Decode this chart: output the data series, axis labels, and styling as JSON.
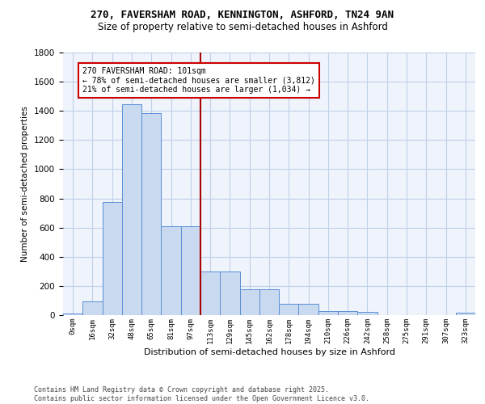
{
  "title_line1": "270, FAVERSHAM ROAD, KENNINGTON, ASHFORD, TN24 9AN",
  "title_line2": "Size of property relative to semi-detached houses in Ashford",
  "xlabel": "Distribution of semi-detached houses by size in Ashford",
  "ylabel": "Number of semi-detached properties",
  "bar_categories": [
    "0sqm",
    "16sqm",
    "32sqm",
    "48sqm",
    "65sqm",
    "81sqm",
    "97sqm",
    "113sqm",
    "129sqm",
    "145sqm",
    "162sqm",
    "178sqm",
    "194sqm",
    "210sqm",
    "226sqm",
    "242sqm",
    "258sqm",
    "275sqm",
    "291sqm",
    "307sqm",
    "323sqm"
  ],
  "bar_values": [
    10,
    95,
    775,
    1445,
    1385,
    610,
    610,
    300,
    300,
    175,
    175,
    80,
    80,
    28,
    28,
    20,
    0,
    0,
    0,
    0,
    15
  ],
  "bar_color": "#c8d9f0",
  "bar_edge_color": "#5b8fd4",
  "grid_color": "#c0d0e8",
  "bg_color": "#eef3fc",
  "vline_color": "#aa0000",
  "annotation_title": "270 FAVERSHAM ROAD: 101sqm",
  "annotation_line1": "← 78% of semi-detached houses are smaller (3,812)",
  "annotation_line2": "21% of semi-detached houses are larger (1,034) →",
  "annotation_box_color": "#cc0000",
  "ylim": [
    0,
    1800
  ],
  "yticks": [
    0,
    200,
    400,
    600,
    800,
    1000,
    1200,
    1400,
    1600,
    1800
  ],
  "footer_line1": "Contains HM Land Registry data © Crown copyright and database right 2025.",
  "footer_line2": "Contains public sector information licensed under the Open Government Licence v3.0."
}
